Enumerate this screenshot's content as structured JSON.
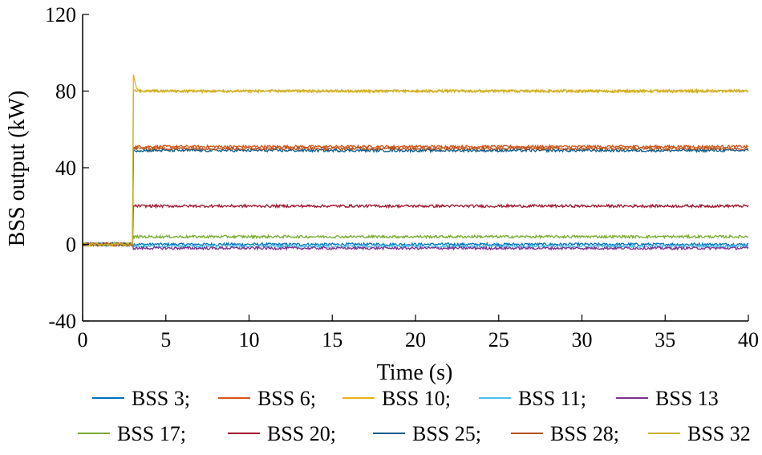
{
  "chart_data": {
    "type": "line",
    "title": "",
    "xlabel": "Time (s)",
    "ylabel": "BSS output (kW)",
    "xlim": [
      0,
      40
    ],
    "ylim": [
      -40,
      120
    ],
    "xticks": [
      0,
      5,
      10,
      15,
      20,
      25,
      30,
      35,
      40
    ],
    "yticks": [
      -40,
      0,
      40,
      80,
      120
    ],
    "xtick_labels": [
      "0",
      "5",
      "10",
      "15",
      "20",
      "25",
      "30",
      "35",
      "40"
    ],
    "ytick_labels": [
      "-40",
      "0",
      "40",
      "80",
      "120"
    ],
    "grid": false,
    "legend_position": "bottom",
    "step_time": 3.0,
    "series": [
      {
        "name": "BSS 3;",
        "color": "#0072BD",
        "initial": 0,
        "steady": 0,
        "peak": null
      },
      {
        "name": "BSS 6;",
        "color": "#D95319",
        "initial": 0,
        "steady": 51,
        "peak": 51
      },
      {
        "name": "BSS 10;",
        "color": "#EDB120",
        "initial": 0,
        "steady": 80,
        "peak": 94
      },
      {
        "name": "BSS 11;",
        "color": "#4DBEEE",
        "initial": 0,
        "steady": -1,
        "peak": null
      },
      {
        "name": "BSS 13",
        "color": "#7E2F8E",
        "initial": 0,
        "steady": -2,
        "peak": null
      },
      {
        "name": "BSS 17;",
        "color": "#77AC30",
        "initial": 0,
        "steady": 4,
        "peak": null
      },
      {
        "name": "BSS 20;",
        "color": "#A2142F",
        "initial": 0,
        "steady": 20,
        "peak": 20
      },
      {
        "name": "BSS 25;",
        "color": "#0A5C8A",
        "initial": 0,
        "steady": 49,
        "peak": 49
      },
      {
        "name": "BSS 28;",
        "color": "#B5531C",
        "initial": 0,
        "steady": 50,
        "peak": 50
      },
      {
        "name": "BSS 32",
        "color": "#C9B22B",
        "initial": 0,
        "steady": 80,
        "peak": 80
      }
    ]
  }
}
